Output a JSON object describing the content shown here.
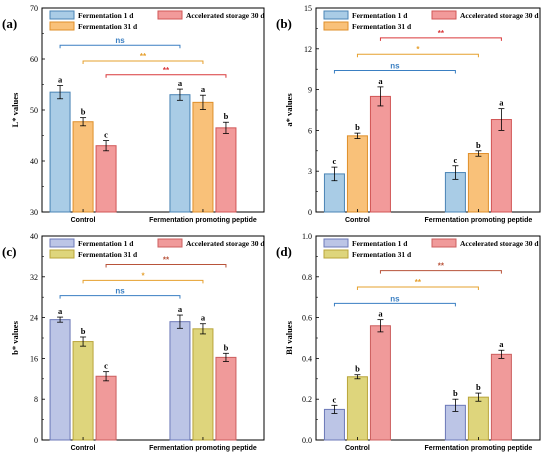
{
  "chart_data": [
    {
      "type": "bar",
      "panel": "(a)",
      "ylabel": "L* values",
      "ylim": [
        30,
        70
      ],
      "yticks": [
        30,
        40,
        50,
        60,
        70
      ],
      "categories": [
        "Control",
        "Fermentation promoting peptide"
      ],
      "series": [
        {
          "name": "Fermentation 1 d",
          "values": [
            53.5,
            53.0
          ],
          "errors": [
            1.3,
            1.1
          ],
          "letters": [
            "a",
            "a"
          ]
        },
        {
          "name": "Fermentation 31 d",
          "values": [
            47.7,
            51.5
          ],
          "errors": [
            0.8,
            1.4
          ],
          "letters": [
            "b",
            "a"
          ]
        },
        {
          "name": "Accelerated storage 30 d",
          "values": [
            43.0,
            46.5
          ],
          "errors": [
            1.0,
            1.1
          ],
          "letters": [
            "c",
            "b"
          ]
        }
      ],
      "significance": [
        {
          "text": "ns",
          "series": 0,
          "level": 62.7
        },
        {
          "text": "**",
          "series": 1,
          "level": 59.6
        },
        {
          "text": "**",
          "series": 2,
          "level": 56.9
        }
      ]
    },
    {
      "type": "bar",
      "panel": "(b)",
      "ylabel": "a* values",
      "ylim": [
        0,
        15
      ],
      "yticks": [
        0,
        3,
        6,
        9,
        12,
        15
      ],
      "categories": [
        "Control",
        "Fermentation promoting peptide"
      ],
      "series": [
        {
          "name": "Fermentation 1 d",
          "values": [
            2.8,
            2.9
          ],
          "errors": [
            0.5,
            0.5
          ],
          "letters": [
            "c",
            "c"
          ]
        },
        {
          "name": "Fermentation 31 d",
          "values": [
            5.6,
            4.3
          ],
          "errors": [
            0.2,
            0.2
          ],
          "letters": [
            "b",
            "b"
          ]
        },
        {
          "name": "Accelerated storage 30 d",
          "values": [
            8.5,
            6.8
          ],
          "errors": [
            0.7,
            0.8
          ],
          "letters": [
            "a",
            "a"
          ]
        }
      ],
      "significance": [
        {
          "text": "ns",
          "series": 0,
          "level": 10.4
        },
        {
          "text": "*",
          "series": 1,
          "level": 11.6
        },
        {
          "text": "**",
          "series": 2,
          "level": 12.8
        }
      ]
    },
    {
      "type": "bar",
      "panel": "(c)",
      "ylabel": "b* values",
      "ylim": [
        0,
        40
      ],
      "yticks": [
        0,
        8,
        16,
        24,
        32,
        40
      ],
      "categories": [
        "Control",
        "Fermentation promoting peptide"
      ],
      "series": [
        {
          "name": "Fermentation 1 d",
          "values": [
            23.6,
            23.2
          ],
          "errors": [
            0.5,
            1.3
          ],
          "letters": [
            "a",
            "a"
          ]
        },
        {
          "name": "Fermentation 31 d",
          "values": [
            19.3,
            21.8
          ],
          "errors": [
            0.9,
            1.0
          ],
          "letters": [
            "b",
            "a"
          ]
        },
        {
          "name": "Accelerated storage 30 d",
          "values": [
            12.5,
            16.2
          ],
          "errors": [
            0.9,
            0.8
          ],
          "letters": [
            "c",
            "b"
          ]
        }
      ],
      "significance": [
        {
          "text": "ns",
          "series": 0,
          "level": 28.3
        },
        {
          "text": "*",
          "series": 1,
          "level": 31.3
        },
        {
          "text": "**",
          "series": 2,
          "level": 34.4
        }
      ]
    },
    {
      "type": "bar",
      "panel": "(d)",
      "ylabel": "BI values",
      "ylim": [
        0.0,
        1.0
      ],
      "yticks": [
        0.0,
        0.2,
        0.4,
        0.6,
        0.8,
        1.0
      ],
      "categories": [
        "Control",
        "Fermentation promoting peptide"
      ],
      "series": [
        {
          "name": "Fermentation 1 d",
          "values": [
            0.15,
            0.17
          ],
          "errors": [
            0.02,
            0.03
          ],
          "letters": [
            "c",
            "b"
          ]
        },
        {
          "name": "Fermentation 31 d",
          "values": [
            0.31,
            0.21
          ],
          "errors": [
            0.01,
            0.02
          ],
          "letters": [
            "b",
            "b"
          ]
        },
        {
          "name": "Accelerated storage 30 d",
          "values": [
            0.56,
            0.42
          ],
          "errors": [
            0.03,
            0.02
          ],
          "letters": [
            "a",
            "a"
          ]
        }
      ],
      "significance": [
        {
          "text": "ns",
          "series": 0,
          "level": 0.67
        },
        {
          "text": "**",
          "series": 1,
          "level": 0.75
        },
        {
          "text": "**",
          "series": 2,
          "level": 0.83
        }
      ]
    }
  ],
  "styles": {
    "top": {
      "fills": [
        "#a9cce6",
        "#f9c179",
        "#f29a9a"
      ],
      "strokes": [
        "#4a84b5",
        "#df8f2a",
        "#d15656"
      ],
      "sig_colors": [
        "#3a7fc2",
        "#e6a02e",
        "#d9383a"
      ]
    },
    "bottom": {
      "fills": [
        "#bcc5e6",
        "#ded57c",
        "#f09a9a"
      ],
      "strokes": [
        "#6c79b8",
        "#b9a53a",
        "#cc5f5f"
      ],
      "sig_colors": [
        "#3a7fc2",
        "#e6a02e",
        "#b8533a"
      ]
    }
  }
}
